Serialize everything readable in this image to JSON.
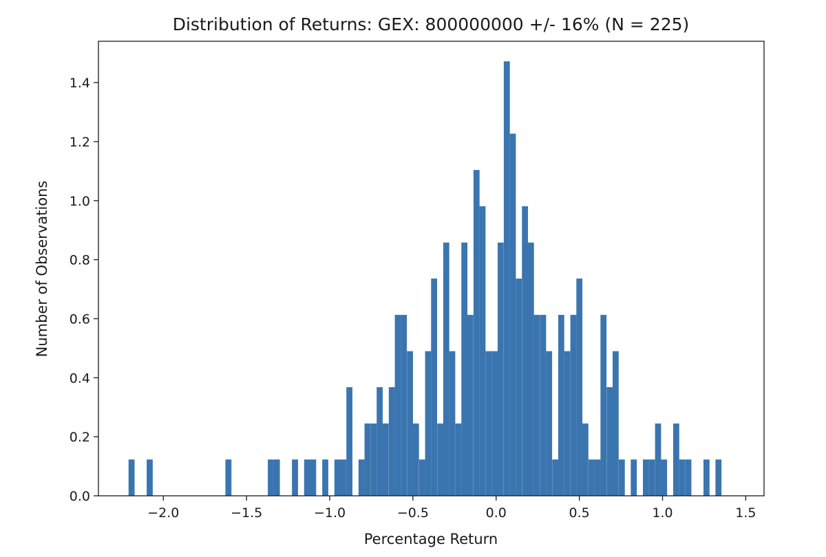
{
  "chart_data": {
    "type": "bar",
    "title": "Distribution of Returns: GEX: 800000000 +/- 16% (N = 225)",
    "xlabel": "Percentage Return",
    "ylabel": "Number of Observations",
    "xlim": [
      -2.39,
      1.61
    ],
    "ylim": [
      0.0,
      1.54
    ],
    "xticks": [
      -2.0,
      -1.5,
      -1.0,
      -0.5,
      0.0,
      0.5,
      1.0,
      1.5
    ],
    "xtick_labels": [
      "−2.0",
      "−1.5",
      "−1.0",
      "−0.5",
      "0.0",
      "0.5",
      "1.0",
      "1.5"
    ],
    "yticks": [
      0.0,
      0.2,
      0.4,
      0.6,
      0.8,
      1.0,
      1.2,
      1.4
    ],
    "ytick_labels": [
      "0.0",
      "0.2",
      "0.4",
      "0.6",
      "0.8",
      "1.0",
      "1.2",
      "1.4"
    ],
    "bin_width": 0.0363,
    "bar_color": "#3b75af",
    "grid": false,
    "bins": [
      {
        "x": -2.209,
        "y": 0.123
      },
      {
        "x": -2.1,
        "y": 0.123
      },
      {
        "x": -1.627,
        "y": 0.123
      },
      {
        "x": -1.372,
        "y": 0.123
      },
      {
        "x": -1.336,
        "y": 0.123
      },
      {
        "x": -1.227,
        "y": 0.123
      },
      {
        "x": -1.154,
        "y": 0.123
      },
      {
        "x": -1.118,
        "y": 0.123
      },
      {
        "x": -1.045,
        "y": 0.123
      },
      {
        "x": -0.972,
        "y": 0.123
      },
      {
        "x": -0.936,
        "y": 0.123
      },
      {
        "x": -0.9,
        "y": 0.368
      },
      {
        "x": -0.827,
        "y": 0.123
      },
      {
        "x": -0.791,
        "y": 0.245
      },
      {
        "x": -0.754,
        "y": 0.245
      },
      {
        "x": -0.718,
        "y": 0.368
      },
      {
        "x": -0.682,
        "y": 0.245
      },
      {
        "x": -0.645,
        "y": 0.368
      },
      {
        "x": -0.609,
        "y": 0.613
      },
      {
        "x": -0.573,
        "y": 0.613
      },
      {
        "x": -0.536,
        "y": 0.49
      },
      {
        "x": -0.5,
        "y": 0.245
      },
      {
        "x": -0.463,
        "y": 0.123
      },
      {
        "x": -0.427,
        "y": 0.49
      },
      {
        "x": -0.391,
        "y": 0.736
      },
      {
        "x": -0.354,
        "y": 0.245
      },
      {
        "x": -0.318,
        "y": 0.858
      },
      {
        "x": -0.282,
        "y": 0.49
      },
      {
        "x": -0.245,
        "y": 0.245
      },
      {
        "x": -0.209,
        "y": 0.858
      },
      {
        "x": -0.173,
        "y": 0.613
      },
      {
        "x": -0.136,
        "y": 1.104
      },
      {
        "x": -0.1,
        "y": 0.981
      },
      {
        "x": -0.063,
        "y": 0.49
      },
      {
        "x": -0.027,
        "y": 0.49
      },
      {
        "x": 0.009,
        "y": 0.858
      },
      {
        "x": 0.046,
        "y": 1.472
      },
      {
        "x": 0.082,
        "y": 1.227
      },
      {
        "x": 0.118,
        "y": 0.736
      },
      {
        "x": 0.155,
        "y": 0.981
      },
      {
        "x": 0.191,
        "y": 0.858
      },
      {
        "x": 0.227,
        "y": 0.613
      },
      {
        "x": 0.264,
        "y": 0.613
      },
      {
        "x": 0.3,
        "y": 0.49
      },
      {
        "x": 0.337,
        "y": 0.123
      },
      {
        "x": 0.373,
        "y": 0.613
      },
      {
        "x": 0.409,
        "y": 0.49
      },
      {
        "x": 0.446,
        "y": 0.613
      },
      {
        "x": 0.482,
        "y": 0.736
      },
      {
        "x": 0.518,
        "y": 0.245
      },
      {
        "x": 0.555,
        "y": 0.123
      },
      {
        "x": 0.591,
        "y": 0.123
      },
      {
        "x": 0.627,
        "y": 0.613
      },
      {
        "x": 0.664,
        "y": 0.368
      },
      {
        "x": 0.7,
        "y": 0.49
      },
      {
        "x": 0.737,
        "y": 0.123
      },
      {
        "x": 0.809,
        "y": 0.123
      },
      {
        "x": 0.882,
        "y": 0.123
      },
      {
        "x": 0.918,
        "y": 0.123
      },
      {
        "x": 0.955,
        "y": 0.245
      },
      {
        "x": 0.991,
        "y": 0.123
      },
      {
        "x": 1.064,
        "y": 0.245
      },
      {
        "x": 1.1,
        "y": 0.123
      },
      {
        "x": 1.137,
        "y": 0.123
      },
      {
        "x": 1.246,
        "y": 0.123
      },
      {
        "x": 1.318,
        "y": 0.123
      }
    ]
  }
}
